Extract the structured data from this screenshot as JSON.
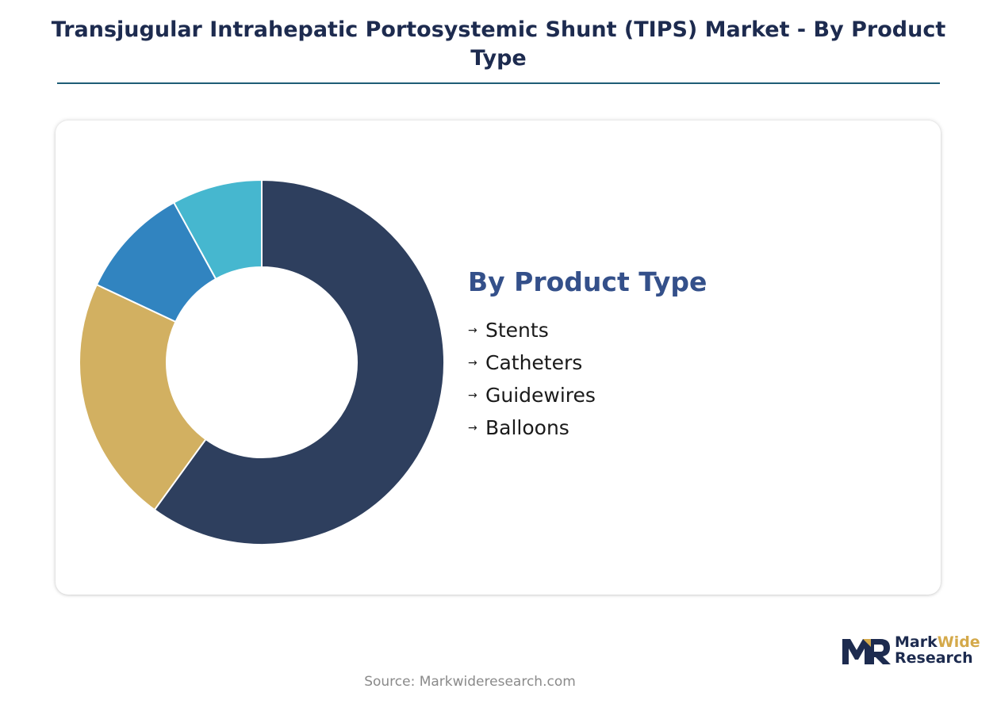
{
  "title": "Transjugular Intrahepatic Portosystemic Shunt (TIPS) Market - By Product Type",
  "legend_title": "By Product Type",
  "legend_arrow": "→",
  "source": "Source: Markwideresearch.com",
  "logo": {
    "line1_part1": "Mark",
    "line1_part2": "Wide",
    "line2": "Research",
    "mark_icon": "mwr-logo-icon"
  },
  "colors": {
    "stents": "#2e3f5e",
    "catheters": "#d2b061",
    "guidewires": "#3184c0",
    "balloons": "#46b7cf",
    "title": "#1d2b4f",
    "legend_title": "#34508a",
    "accent": "#d4a94a"
  },
  "chart_data": {
    "type": "pie",
    "variant": "donut",
    "categories": [
      "Stents",
      "Catheters",
      "Guidewires",
      "Balloons"
    ],
    "values": [
      60,
      22,
      10,
      8
    ],
    "colors": [
      "#2e3f5e",
      "#d2b061",
      "#3184c0",
      "#46b7cf"
    ],
    "legend_placement": "right",
    "start_angle": "12 o'clock",
    "direction": "clockwise"
  }
}
